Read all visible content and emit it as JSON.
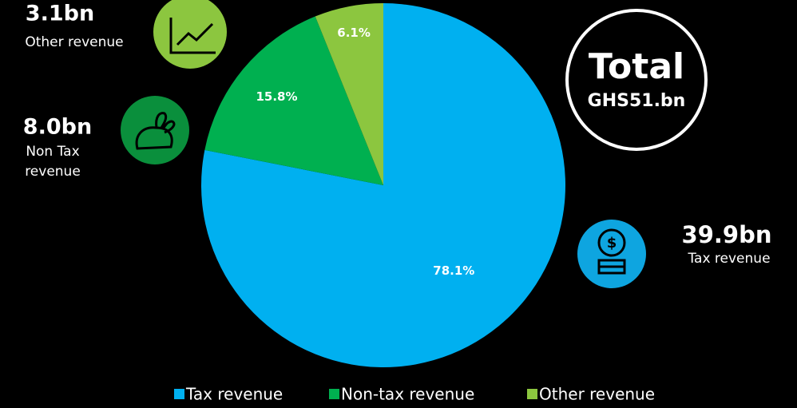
{
  "chart_data": {
    "type": "pie",
    "categories": [
      "Tax revenue",
      "Non-tax revenue",
      "Other revenue"
    ],
    "values": [
      78.1,
      15.8,
      6.1
    ],
    "value_labels": [
      "78.1%",
      "15.8%",
      "6.1%"
    ],
    "colors": [
      "#00b0f0",
      "#00b050",
      "#8cc63f"
    ],
    "legend": "bottom",
    "total": {
      "title": "Total",
      "value": "GHS51.bn"
    },
    "annotations": [
      {
        "value": "39.9bn",
        "label": "Tax revenue"
      },
      {
        "value": "8.0bn",
        "label": [
          "Non Tax",
          "revenue"
        ]
      },
      {
        "value": "3.1bn",
        "label": "Other revenue"
      }
    ]
  }
}
